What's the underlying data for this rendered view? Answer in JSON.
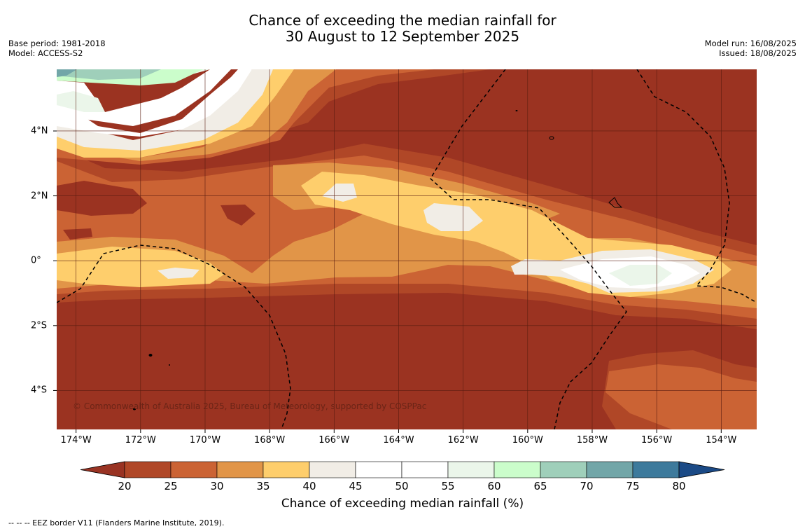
{
  "title_line1": "Chance of exceeding the median rainfall for",
  "title_line2": "30 August to 12 September 2025",
  "base_period": "Base period: 1981-2018",
  "model": "Model: ACCESS-S2",
  "model_run": "Model run: 16/08/2025",
  "issued": "Issued: 18/08/2025",
  "credit": "© Commonwealth of Australia 2025, Bureau of Meteorology, supported by COSPPac",
  "footnote": "--  --  -- EEZ border V11 (Flanders Marine Institute, 2019).",
  "map": {
    "lon_range": [
      -174.6,
      -152.9
    ],
    "lat_range": [
      -5.2,
      5.9
    ],
    "lon_ticks": [
      {
        "value": -174,
        "label": "174°W"
      },
      {
        "value": -172,
        "label": "172°W"
      },
      {
        "value": -170,
        "label": "170°W"
      },
      {
        "value": -168,
        "label": "168°W"
      },
      {
        "value": -166,
        "label": "166°W"
      },
      {
        "value": -164,
        "label": "164°W"
      },
      {
        "value": -162,
        "label": "162°W"
      },
      {
        "value": -160,
        "label": "160°W"
      },
      {
        "value": -158,
        "label": "158°W"
      },
      {
        "value": -156,
        "label": "156°W"
      },
      {
        "value": -154,
        "label": "154°W"
      }
    ],
    "lat_ticks": [
      {
        "value": 4,
        "label": "4°N"
      },
      {
        "value": 2,
        "label": "2°N"
      },
      {
        "value": 0,
        "label": "0°"
      },
      {
        "value": -2,
        "label": "2°S"
      },
      {
        "value": -4,
        "label": "4°S"
      }
    ],
    "background_color": "#9b3321"
  },
  "colorbar": {
    "label": "Chance of exceeding median rainfall (%)",
    "ticks": [
      "20",
      "25",
      "30",
      "35",
      "40",
      "45",
      "50",
      "55",
      "60",
      "65",
      "70",
      "75",
      "80"
    ],
    "under_color": "#993323",
    "over_color": "#1b4a86",
    "colors": [
      "#b04727",
      "#cb6334",
      "#e19548",
      "#fece6c",
      "#f1ede6",
      "#ffffff",
      "#ffffff",
      "#ebf6ea",
      "#cbfdcb",
      "#9fcfba",
      "#72a6a8",
      "#3d7a9c"
    ]
  }
}
